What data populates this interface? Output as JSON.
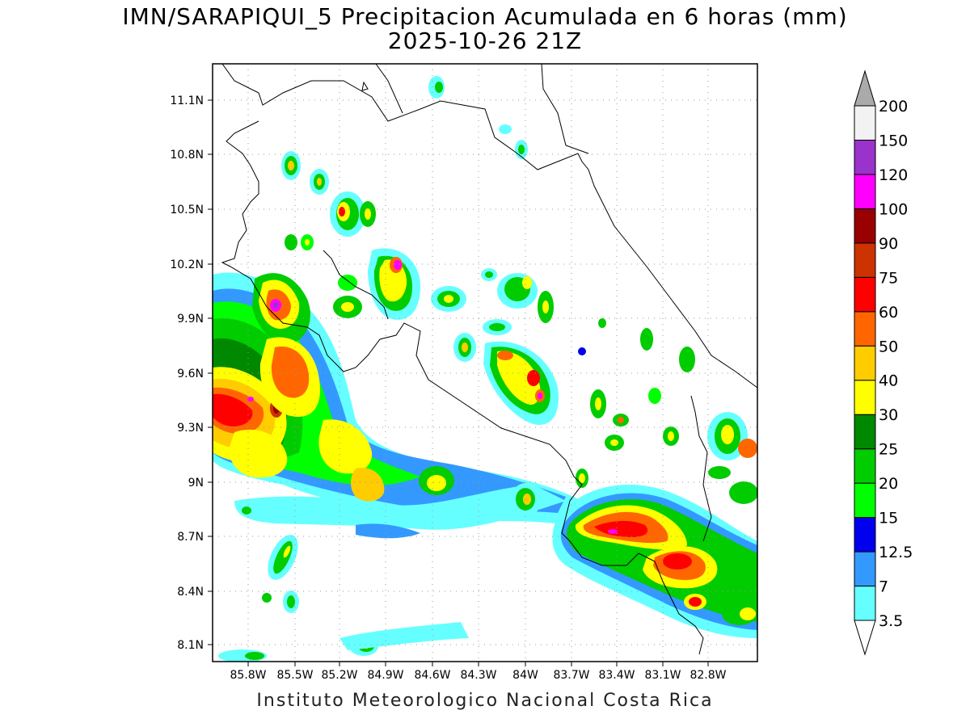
{
  "header": {
    "title_line1": "IMN/SARAPIQUI_5 Precipitacion Acumulada en 6 horas (mm)",
    "title_line2": "2025-10-26 21Z"
  },
  "map": {
    "lat_ticks": [
      "11.1N",
      "10.8N",
      "10.5N",
      "10.2N",
      "9.9N",
      "9.6N",
      "9.3N",
      "9N",
      "8.7N",
      "8.4N",
      "8.1N"
    ],
    "lon_ticks": [
      "85.8W",
      "85.5W",
      "85.2W",
      "84.9W",
      "84.6W",
      "84.3W",
      "84W",
      "83.7W",
      "83.4W",
      "83.1W",
      "82.8W"
    ],
    "precip_color_hex": [
      "#ffffff",
      "#66ffff",
      "#3399ff",
      "#0000ee",
      "#00ff00",
      "#00cc00",
      "#008800",
      "#ffff00",
      "#ffcc00",
      "#ff6600",
      "#ff0000",
      "#cc3300",
      "#990000",
      "#ff00ff",
      "#9933cc",
      "#f2f2f2"
    ]
  },
  "colorbar": {
    "labels": [
      "3.5",
      "7",
      "12.5",
      "15",
      "20",
      "25",
      "30",
      "40",
      "50",
      "60",
      "75",
      "90",
      "100",
      "120",
      "150",
      "200"
    ],
    "colors": [
      "#66ffff",
      "#3399ff",
      "#0000ee",
      "#00ff00",
      "#00cc00",
      "#008800",
      "#ffff00",
      "#ffcc00",
      "#ff6600",
      "#ff0000",
      "#cc3300",
      "#990000",
      "#ff00ff",
      "#9933cc",
      "#f2f2f2"
    ],
    "max_arrow_color": "#aaaaaa",
    "min_arrow_color": "#ffffff"
  },
  "footer": {
    "credit": "Instituto Meteorologico Nacional Costa Rica"
  }
}
